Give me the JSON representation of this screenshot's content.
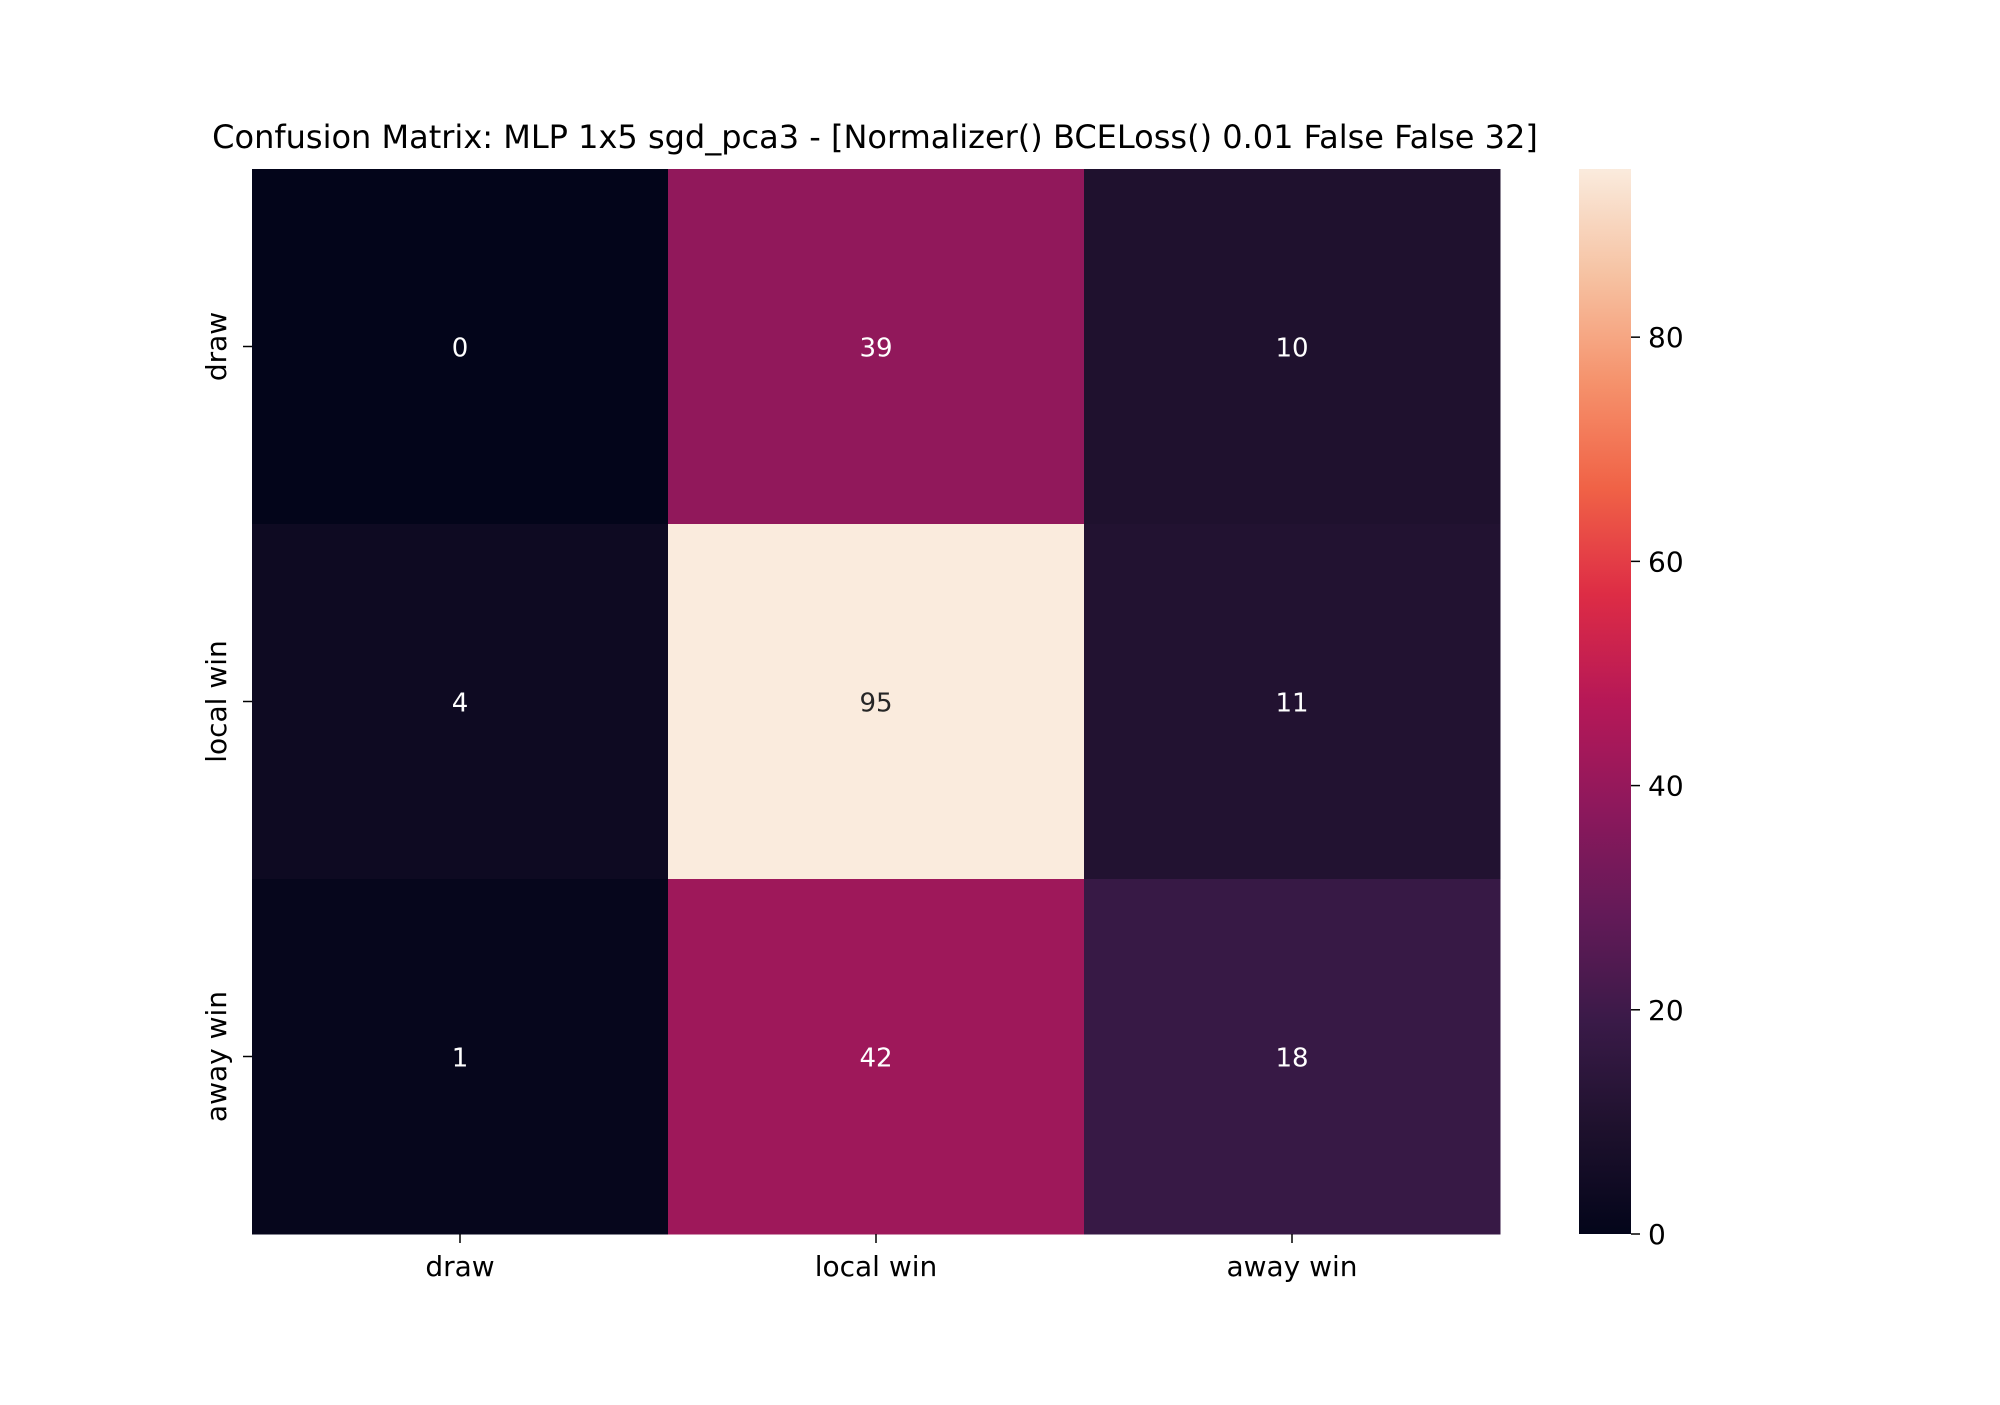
{
  "chart_data": {
    "type": "heatmap",
    "title": "Confusion Matrix: MLP 1x5 sgd_pca3 - [Normalizer() BCELoss() 0.01 False False 32]",
    "xlabel": "",
    "ylabel": "",
    "x_categories": [
      "draw",
      "local win",
      "away win"
    ],
    "y_categories": [
      "draw",
      "local win",
      "away win"
    ],
    "values": [
      [
        0,
        39,
        10
      ],
      [
        4,
        95,
        11
      ],
      [
        1,
        42,
        18
      ]
    ],
    "colorbar": {
      "vmin": 0,
      "vmax": 95,
      "ticks": [
        0,
        20,
        40,
        60,
        80
      ],
      "colormap": "rocket"
    },
    "annotations_shown": true
  }
}
